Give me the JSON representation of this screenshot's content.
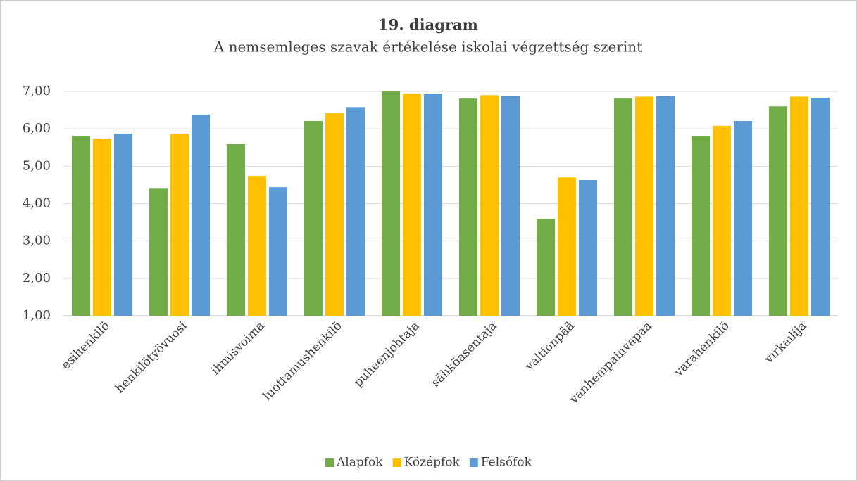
{
  "chart_data": {
    "type": "bar",
    "title": "19. diagram",
    "subtitle": "A nemsemleges szavak értékelése iskolai végzettség szerint",
    "categories": [
      "esihenkilö",
      "henkilötyövuosi",
      "ihmisvoima",
      "luottamushenkilö",
      "puheenjohtaja",
      "sähköasentaja",
      "valtionpää",
      "vanhempainvapaa",
      "varahenkilö",
      "virkailija"
    ],
    "series": [
      {
        "name": "Alapfok",
        "color": "#70ad47",
        "values": [
          5.81,
          4.4,
          5.59,
          6.21,
          7.0,
          6.81,
          3.59,
          6.81,
          5.81,
          6.6
        ]
      },
      {
        "name": "Középfok",
        "color": "#ffc000",
        "values": [
          5.74,
          5.87,
          4.74,
          6.43,
          6.94,
          6.9,
          4.7,
          6.86,
          6.08,
          6.86
        ]
      },
      {
        "name": "Felsőfok",
        "color": "#5b9bd5",
        "values": [
          5.87,
          6.38,
          4.44,
          6.58,
          6.94,
          6.88,
          4.63,
          6.88,
          6.21,
          6.83
        ]
      }
    ],
    "ylim": [
      1,
      7
    ],
    "yticks": [
      {
        "value": 1,
        "label": "1,00"
      },
      {
        "value": 2,
        "label": "2,00"
      },
      {
        "value": 3,
        "label": "3,00"
      },
      {
        "value": 4,
        "label": "4,00"
      },
      {
        "value": 5,
        "label": "5,00"
      },
      {
        "value": 6,
        "label": "6,00"
      },
      {
        "value": 7,
        "label": "7,00"
      }
    ],
    "grid": true,
    "legend": "bottom"
  }
}
